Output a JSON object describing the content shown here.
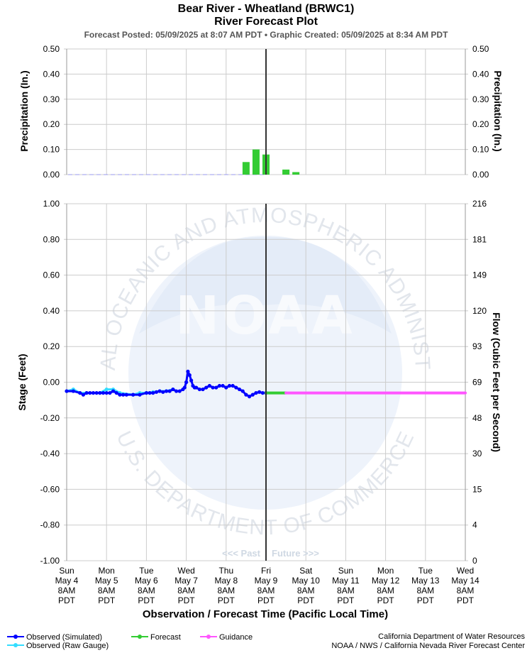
{
  "titles": {
    "main": "Bear River - Wheatland (BRWC1)",
    "sub": "River Forecast Plot",
    "posted": "Forecast Posted: 05/09/2025 at 8:07 AM PDT  •  Graphic Created: 05/09/2025 at 8:34 AM PDT"
  },
  "watermark": {
    "logo": "NOAA",
    "ring_top": "NATIONAL OCEANIC AND ATMOSPHERIC ADMINISTRATION",
    "ring_bottom": "U.S. DEPARTMENT OF COMMERCE"
  },
  "past_label": "<<< Past",
  "future_label": "Future >>>",
  "legend": [
    {
      "label": "Observed (Simulated)",
      "color": "#0000ff"
    },
    {
      "label": "Observed (Raw Gauge)",
      "color": "#33ddff"
    },
    {
      "label": "Forecast",
      "color": "#33cc33"
    },
    {
      "label": "Guidance",
      "color": "#ff55ff"
    }
  ],
  "credits": {
    "line1": "California Department of Water Resources",
    "line2": "NOAA / NWS / California Nevada River Forecast Center"
  },
  "chart_data": [
    {
      "type": "bar",
      "name": "precipitation",
      "ylabel_left": "Precipitation (In.)",
      "ylabel_right": "Precipitation (In.)",
      "ylim": [
        0,
        0.5
      ],
      "yticks": [
        "0.50",
        "0.40",
        "0.30",
        "0.20",
        "0.10",
        "0.00"
      ],
      "grid": true,
      "x_units": "hours since Sun May 4 8AM PDT",
      "observed_dashed_until": 120,
      "bars": [
        {
          "x": 108,
          "value": 0.05
        },
        {
          "x": 114,
          "value": 0.1
        },
        {
          "x": 120,
          "value": 0.08
        },
        {
          "x": 132,
          "value": 0.02
        },
        {
          "x": 138,
          "value": 0.01
        }
      ],
      "bar_color": "#33cc33"
    },
    {
      "type": "line",
      "name": "stage",
      "xlabel": "Observation / Forecast Time (Pacific Local Time)",
      "ylabel_left": "Stage (Feet)",
      "ylabel_right": "Flow (Cubic Feet per Second)",
      "ylim": [
        -1.0,
        1.0
      ],
      "yticks_left": [
        "1.00",
        "0.80",
        "0.60",
        "0.40",
        "0.20",
        "0.00",
        "-0.20",
        "-0.40",
        "-0.60",
        "-0.80",
        "-1.00"
      ],
      "yticks_right": [
        "216",
        "181",
        "149",
        "120",
        "93",
        "69",
        "48",
        "30",
        "15",
        "4",
        "0"
      ],
      "grid": true,
      "now_x": 120,
      "x_ticks": [
        [
          "Sun",
          "May 4",
          "8AM",
          "PDT"
        ],
        [
          "Mon",
          "May 5",
          "8AM",
          "PDT"
        ],
        [
          "Tue",
          "May 6",
          "8AM",
          "PDT"
        ],
        [
          "Wed",
          "May 7",
          "8AM",
          "PDT"
        ],
        [
          "Thu",
          "May 8",
          "8AM",
          "PDT"
        ],
        [
          "Fri",
          "May 9",
          "8AM",
          "PDT"
        ],
        [
          "Sat",
          "May 10",
          "8AM",
          "PDT"
        ],
        [
          "Sun",
          "May 11",
          "8AM",
          "PDT"
        ],
        [
          "Mon",
          "May 12",
          "8AM",
          "PDT"
        ],
        [
          "Tue",
          "May 13",
          "8AM",
          "PDT"
        ],
        [
          "Wed",
          "May 14",
          "8AM",
          "PDT"
        ]
      ],
      "series": [
        {
          "name": "Observed (Simulated)",
          "color": "#0000ff",
          "x": [
            0,
            4,
            8,
            10,
            12,
            14,
            16,
            18,
            20,
            22,
            24,
            26,
            28,
            30,
            32,
            34,
            36,
            40,
            44,
            48,
            50,
            52,
            54,
            56,
            58,
            60,
            62,
            64,
            66,
            68,
            70,
            71,
            72,
            73,
            74,
            75,
            76,
            77,
            78,
            80,
            82,
            84,
            86,
            88,
            90,
            92,
            94,
            96,
            98,
            100,
            102,
            104,
            106,
            108,
            110,
            112,
            114,
            116,
            118,
            120
          ],
          "y": [
            -0.05,
            -0.05,
            -0.06,
            -0.07,
            -0.06,
            -0.06,
            -0.06,
            -0.06,
            -0.06,
            -0.06,
            -0.06,
            -0.06,
            -0.05,
            -0.06,
            -0.07,
            -0.07,
            -0.07,
            -0.07,
            -0.07,
            -0.06,
            -0.06,
            -0.06,
            -0.055,
            -0.05,
            -0.055,
            -0.05,
            -0.05,
            -0.04,
            -0.05,
            -0.05,
            -0.04,
            -0.03,
            0.0,
            0.06,
            0.04,
            0.01,
            -0.02,
            -0.03,
            -0.03,
            -0.04,
            -0.04,
            -0.03,
            -0.02,
            -0.03,
            -0.03,
            -0.02,
            -0.02,
            -0.03,
            -0.02,
            -0.02,
            -0.03,
            -0.04,
            -0.05,
            -0.07,
            -0.08,
            -0.07,
            -0.06,
            -0.055,
            -0.06,
            -0.06
          ]
        },
        {
          "name": "Observed (Raw Gauge)",
          "color": "#33ddff",
          "x": [
            0,
            4,
            8,
            12,
            20,
            24,
            28,
            32,
            40,
            44,
            48,
            52,
            56,
            60,
            64
          ],
          "y": [
            -0.05,
            -0.04,
            -0.06,
            -0.06,
            -0.06,
            -0.04,
            -0.04,
            -0.06,
            -0.07,
            -0.06,
            -0.06,
            -0.055,
            -0.05,
            -0.05,
            -0.04
          ]
        },
        {
          "name": "Forecast",
          "color": "#33cc33",
          "x": [
            120,
            132
          ],
          "y": [
            -0.06,
            -0.06
          ]
        },
        {
          "name": "Guidance",
          "color": "#ff55ff",
          "x": [
            132,
            240
          ],
          "y": [
            -0.06,
            -0.06
          ]
        }
      ]
    }
  ]
}
